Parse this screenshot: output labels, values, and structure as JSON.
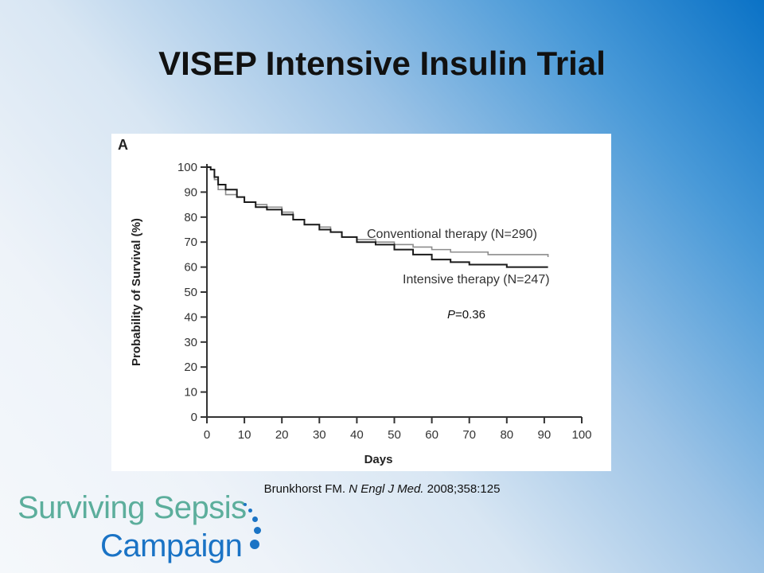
{
  "slide": {
    "title": "VISEP Intensive Insulin Trial",
    "citation_author": "Brunkhorst FM.",
    "citation_journal": "N Engl J Med.",
    "citation_details": "2008;358:125"
  },
  "logo": {
    "line1": "Surviving Sepsis",
    "line2": "Campaign",
    "colors": {
      "line1": "#5cae9c",
      "line2": "#1a73c5"
    }
  },
  "chart_data": {
    "type": "line",
    "panel_label": "A",
    "xlabel": "Days",
    "ylabel": "Probability of Survival (%)",
    "xlim": [
      0,
      100
    ],
    "ylim": [
      0,
      100
    ],
    "x_ticks": [
      0,
      10,
      20,
      30,
      40,
      50,
      60,
      70,
      80,
      90,
      100
    ],
    "y_ticks": [
      0,
      10,
      20,
      30,
      40,
      50,
      60,
      70,
      80,
      90,
      100
    ],
    "p_value_label": "P",
    "p_value_text": "=0.36",
    "series": [
      {
        "name": "Conventional therapy (N=290)",
        "color": "#8c8c8c",
        "x": [
          0,
          1,
          2,
          3,
          5,
          8,
          10,
          13,
          16,
          20,
          23,
          26,
          30,
          33,
          36,
          40,
          45,
          50,
          55,
          60,
          65,
          70,
          75,
          80,
          85,
          91
        ],
        "y": [
          100,
          99,
          95,
          91,
          89,
          88,
          86,
          85,
          84,
          82,
          79,
          77,
          76,
          74,
          72,
          71,
          70,
          69,
          68,
          67,
          66,
          66,
          65,
          65,
          65,
          64
        ]
      },
      {
        "name": "Intensive therapy (N=247)",
        "color": "#1a1a1a",
        "x": [
          0,
          1,
          2,
          3,
          5,
          8,
          10,
          13,
          16,
          20,
          23,
          26,
          30,
          33,
          36,
          40,
          45,
          50,
          55,
          60,
          65,
          70,
          75,
          80,
          85,
          91
        ],
        "y": [
          100,
          99,
          96,
          93,
          91,
          88,
          86,
          84,
          83,
          81,
          79,
          77,
          75,
          74,
          72,
          70,
          69,
          67,
          65,
          63,
          62,
          61,
          61,
          60,
          60,
          60
        ]
      }
    ]
  }
}
